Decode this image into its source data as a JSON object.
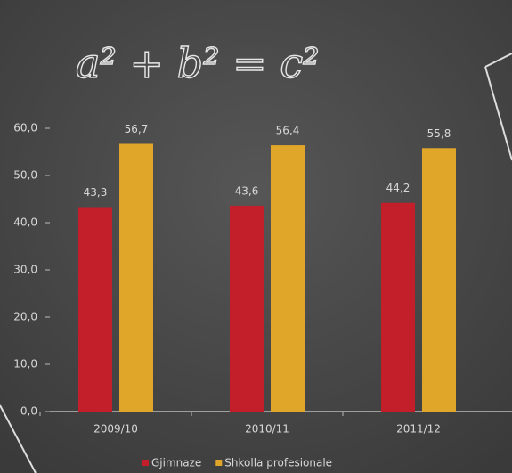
{
  "chart_data": {
    "type": "bar",
    "annotation": "a² + b² = c²",
    "categories": [
      "2009/10",
      "2010/11",
      "2011/12"
    ],
    "series": [
      {
        "name": "Gjimnaze",
        "color": "#c21f2b",
        "values": [
          43.3,
          43.6,
          44.2
        ],
        "value_labels": [
          "43,3",
          "43,6",
          "44,2"
        ]
      },
      {
        "name": "Shkolla profesionale",
        "color": "#dfa62a",
        "values": [
          56.7,
          56.4,
          55.8
        ],
        "value_labels": [
          "56,7",
          "56,4",
          "55,8"
        ]
      }
    ],
    "ylim": [
      0,
      60
    ],
    "yticks": [
      {
        "value": 0,
        "label": "0,0"
      },
      {
        "value": 10,
        "label": "10,0"
      },
      {
        "value": 20,
        "label": "20,0"
      },
      {
        "value": 30,
        "label": "30,0"
      },
      {
        "value": 40,
        "label": "40,0"
      },
      {
        "value": 50,
        "label": "50,0"
      },
      {
        "value": 60,
        "label": "60,0"
      }
    ],
    "grid": false,
    "legend": "bottom"
  }
}
